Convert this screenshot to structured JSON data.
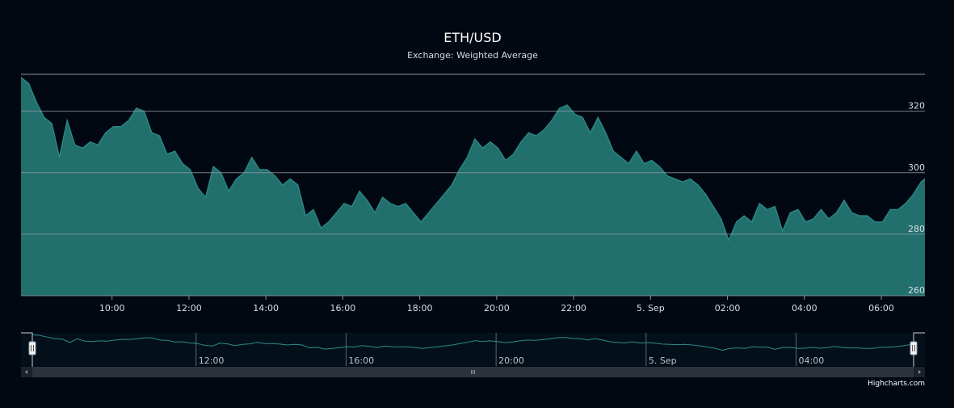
{
  "chart_data": {
    "type": "area",
    "title": "ETH/USD",
    "subtitle": "Exchange: Weighted Average",
    "ylim": [
      260,
      332
    ],
    "yticks": [
      {
        "value": 260,
        "label": "260"
      },
      {
        "value": 280,
        "label": "280"
      },
      {
        "value": 300,
        "label": "300"
      },
      {
        "value": 320,
        "label": "320"
      }
    ],
    "xlim": [
      "2017-09-04 07:38",
      "2017-09-05 07:08"
    ],
    "xticks": [
      {
        "time": "2017-09-04 10:00",
        "label": "10:00"
      },
      {
        "time": "2017-09-04 12:00",
        "label": "12:00"
      },
      {
        "time": "2017-09-04 14:00",
        "label": "14:00"
      },
      {
        "time": "2017-09-04 16:00",
        "label": "16:00"
      },
      {
        "time": "2017-09-04 18:00",
        "label": "18:00"
      },
      {
        "time": "2017-09-04 20:00",
        "label": "20:00"
      },
      {
        "time": "2017-09-04 22:00",
        "label": "22:00"
      },
      {
        "time": "2017-09-05 00:00",
        "label": "5. Sep"
      },
      {
        "time": "2017-09-05 02:00",
        "label": "02:00"
      },
      {
        "time": "2017-09-05 04:00",
        "label": "04:00"
      },
      {
        "time": "2017-09-05 06:00",
        "label": "06:00"
      }
    ],
    "series": [
      {
        "color": "#2a8886",
        "fill": "#22706e",
        "points": [
          [
            "2017-09-04 07:38",
            331
          ],
          [
            "2017-09-04 07:50",
            329
          ],
          [
            "2017-09-04 08:02",
            323
          ],
          [
            "2017-09-04 08:14",
            318
          ],
          [
            "2017-09-04 08:26",
            316
          ],
          [
            "2017-09-04 08:38",
            305
          ],
          [
            "2017-09-04 08:50",
            317
          ],
          [
            "2017-09-04 09:02",
            309
          ],
          [
            "2017-09-04 09:14",
            308
          ],
          [
            "2017-09-04 09:26",
            310
          ],
          [
            "2017-09-04 09:38",
            309
          ],
          [
            "2017-09-04 09:50",
            313
          ],
          [
            "2017-09-04 10:02",
            315
          ],
          [
            "2017-09-04 10:14",
            315
          ],
          [
            "2017-09-04 10:26",
            317
          ],
          [
            "2017-09-04 10:38",
            321
          ],
          [
            "2017-09-04 10:50",
            320
          ],
          [
            "2017-09-04 11:02",
            313
          ],
          [
            "2017-09-04 11:14",
            312
          ],
          [
            "2017-09-04 11:26",
            306
          ],
          [
            "2017-09-04 11:38",
            307
          ],
          [
            "2017-09-04 11:50",
            303
          ],
          [
            "2017-09-04 12:02",
            301
          ],
          [
            "2017-09-04 12:14",
            295
          ],
          [
            "2017-09-04 12:26",
            292
          ],
          [
            "2017-09-04 12:38",
            302
          ],
          [
            "2017-09-04 12:50",
            300
          ],
          [
            "2017-09-04 13:02",
            294
          ],
          [
            "2017-09-04 13:14",
            298
          ],
          [
            "2017-09-04 13:26",
            300
          ],
          [
            "2017-09-04 13:38",
            305
          ],
          [
            "2017-09-04 13:50",
            301
          ],
          [
            "2017-09-04 14:02",
            301
          ],
          [
            "2017-09-04 14:14",
            299
          ],
          [
            "2017-09-04 14:26",
            296
          ],
          [
            "2017-09-04 14:38",
            298
          ],
          [
            "2017-09-04 14:50",
            296
          ],
          [
            "2017-09-04 15:02",
            286
          ],
          [
            "2017-09-04 15:14",
            288
          ],
          [
            "2017-09-04 15:26",
            282
          ],
          [
            "2017-09-04 15:38",
            284
          ],
          [
            "2017-09-04 15:50",
            287
          ],
          [
            "2017-09-04 16:02",
            290
          ],
          [
            "2017-09-04 16:14",
            289
          ],
          [
            "2017-09-04 16:26",
            294
          ],
          [
            "2017-09-04 16:38",
            291
          ],
          [
            "2017-09-04 16:50",
            287
          ],
          [
            "2017-09-04 17:02",
            292
          ],
          [
            "2017-09-04 17:14",
            290
          ],
          [
            "2017-09-04 17:26",
            289
          ],
          [
            "2017-09-04 17:38",
            290
          ],
          [
            "2017-09-04 17:50",
            287
          ],
          [
            "2017-09-04 18:02",
            284
          ],
          [
            "2017-09-04 18:14",
            287
          ],
          [
            "2017-09-04 18:26",
            290
          ],
          [
            "2017-09-04 18:38",
            293
          ],
          [
            "2017-09-04 18:50",
            296
          ],
          [
            "2017-09-04 19:02",
            301
          ],
          [
            "2017-09-04 19:14",
            305
          ],
          [
            "2017-09-04 19:26",
            311
          ],
          [
            "2017-09-04 19:38",
            308
          ],
          [
            "2017-09-04 19:50",
            310
          ],
          [
            "2017-09-04 20:02",
            308
          ],
          [
            "2017-09-04 20:14",
            304
          ],
          [
            "2017-09-04 20:26",
            306
          ],
          [
            "2017-09-04 20:38",
            310
          ],
          [
            "2017-09-04 20:50",
            313
          ],
          [
            "2017-09-04 21:02",
            312
          ],
          [
            "2017-09-04 21:14",
            314
          ],
          [
            "2017-09-04 21:26",
            317
          ],
          [
            "2017-09-04 21:38",
            321
          ],
          [
            "2017-09-04 21:50",
            322
          ],
          [
            "2017-09-04 22:02",
            319
          ],
          [
            "2017-09-04 22:14",
            318
          ],
          [
            "2017-09-04 22:26",
            313
          ],
          [
            "2017-09-04 22:38",
            318
          ],
          [
            "2017-09-04 22:50",
            313
          ],
          [
            "2017-09-04 23:02",
            307
          ],
          [
            "2017-09-04 23:14",
            305
          ],
          [
            "2017-09-04 23:26",
            303
          ],
          [
            "2017-09-04 23:38",
            307
          ],
          [
            "2017-09-04 23:50",
            303
          ],
          [
            "2017-09-05 00:02",
            304
          ],
          [
            "2017-09-05 00:14",
            302
          ],
          [
            "2017-09-05 00:26",
            299
          ],
          [
            "2017-09-05 00:38",
            298
          ],
          [
            "2017-09-05 00:50",
            297
          ],
          [
            "2017-09-05 01:02",
            298
          ],
          [
            "2017-09-05 01:14",
            296
          ],
          [
            "2017-09-05 01:26",
            293
          ],
          [
            "2017-09-05 01:38",
            289
          ],
          [
            "2017-09-05 01:50",
            285
          ],
          [
            "2017-09-05 02:02",
            278
          ],
          [
            "2017-09-05 02:14",
            284
          ],
          [
            "2017-09-05 02:26",
            286
          ],
          [
            "2017-09-05 02:38",
            284
          ],
          [
            "2017-09-05 02:50",
            290
          ],
          [
            "2017-09-05 03:02",
            288
          ],
          [
            "2017-09-05 03:14",
            289
          ],
          [
            "2017-09-05 03:26",
            281
          ],
          [
            "2017-09-05 03:38",
            287
          ],
          [
            "2017-09-05 03:50",
            288
          ],
          [
            "2017-09-05 04:02",
            284
          ],
          [
            "2017-09-05 04:14",
            285
          ],
          [
            "2017-09-05 04:26",
            288
          ],
          [
            "2017-09-05 04:38",
            285
          ],
          [
            "2017-09-05 04:50",
            287
          ],
          [
            "2017-09-05 05:02",
            291
          ],
          [
            "2017-09-05 05:14",
            287
          ],
          [
            "2017-09-05 05:26",
            286
          ],
          [
            "2017-09-05 05:38",
            286
          ],
          [
            "2017-09-05 05:50",
            284
          ],
          [
            "2017-09-05 06:02",
            284
          ],
          [
            "2017-09-05 06:14",
            288
          ],
          [
            "2017-09-05 06:26",
            288
          ],
          [
            "2017-09-05 06:38",
            290
          ],
          [
            "2017-09-05 06:50",
            293
          ],
          [
            "2017-09-05 07:02",
            297
          ],
          [
            "2017-09-05 07:08",
            298
          ]
        ]
      }
    ],
    "grid": true,
    "navigator": {
      "xlim": [
        "2017-09-04 07:38",
        "2017-09-05 07:08"
      ],
      "xticks": [
        {
          "time": "2017-09-04 12:00",
          "label": "12:00"
        },
        {
          "time": "2017-09-04 16:00",
          "label": "16:00"
        },
        {
          "time": "2017-09-04 20:00",
          "label": "20:00"
        },
        {
          "time": "2017-09-05 00:00",
          "label": "5. Sep"
        },
        {
          "time": "2017-09-05 04:00",
          "label": "04:00"
        }
      ]
    },
    "credits": "Highcharts.com"
  },
  "colors": {
    "background": "#020812",
    "grid": "#8a96a0",
    "area_fill": "#22706e",
    "area_line": "#2a8886",
    "nav_line": "#2e8a88",
    "scrollbar_track": "#1c222a",
    "scrollbar_thumb": "#2c333c"
  }
}
